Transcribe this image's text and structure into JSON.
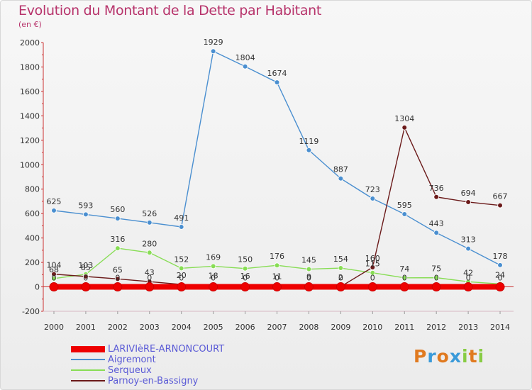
{
  "chart_data": {
    "type": "line",
    "title": "Evolution du Montant de la Dette par Habitant",
    "subtitle": "(en €)",
    "xlabel": "",
    "ylabel": "",
    "ylim": [
      -200,
      2000
    ],
    "yticks": [
      -200,
      0,
      200,
      400,
      600,
      800,
      1000,
      1200,
      1400,
      1600,
      1800,
      2000
    ],
    "x": [
      "2000",
      "2001",
      "2002",
      "2003",
      "2004",
      "2005",
      "2006",
      "2007",
      "2008",
      "2009",
      "2010",
      "2011",
      "2012",
      "2013",
      "2014"
    ],
    "grid": false,
    "legend_position": "bottom-left",
    "series": [
      {
        "name": "LARIVIèRE-ARNONCOURT",
        "color": "#ee0000",
        "values": [
          0,
          0,
          0,
          0,
          0,
          0,
          0,
          0,
          0,
          0,
          0,
          0,
          0,
          0,
          0
        ],
        "labels": [
          "0",
          "0",
          "0",
          "0",
          "0",
          "0",
          "0",
          "0",
          "0",
          "0",
          "0",
          "0",
          "0",
          "0",
          "0"
        ]
      },
      {
        "name": "Aigremont",
        "color": "#4a8fd0",
        "values": [
          625,
          593,
          560,
          526,
          491,
          1929,
          1804,
          1674,
          1119,
          887,
          723,
          595,
          443,
          313,
          178
        ],
        "labels": [
          "625",
          "593",
          "560",
          "526",
          "491",
          "1929",
          "1804",
          "1674",
          "1119",
          "887",
          "723",
          "595",
          "443",
          "313",
          "178"
        ]
      },
      {
        "name": "Serqueux",
        "color": "#88dd55",
        "values": [
          68,
          103,
          316,
          280,
          152,
          169,
          150,
          176,
          145,
          154,
          115,
          74,
          75,
          42,
          24
        ],
        "labels": [
          "68",
          "103",
          "316",
          "280",
          "152",
          "169",
          "150",
          "176",
          "145",
          "154",
          "115",
          "74",
          "75",
          "42",
          "24"
        ]
      },
      {
        "name": "Parnoy-en-Bassigny",
        "color": "#6b1a1a",
        "values": [
          104,
          85,
          65,
          43,
          20,
          18,
          16,
          11,
          9,
          2,
          160,
          1304,
          736,
          694,
          667
        ],
        "labels": [
          "104",
          "85",
          "65",
          "43",
          "20",
          "18",
          "16",
          "11",
          "9",
          "2",
          "160",
          "1304",
          "736",
          "694",
          "667"
        ]
      }
    ]
  },
  "logo": {
    "letters": [
      "P",
      "r",
      "o",
      "x",
      "i",
      "t",
      "i"
    ],
    "colors": [
      "#e07a20",
      "#3a9ad9",
      "#e07a20",
      "#3a9ad9",
      "#88cc44",
      "#e07a20",
      "#88cc44"
    ]
  }
}
